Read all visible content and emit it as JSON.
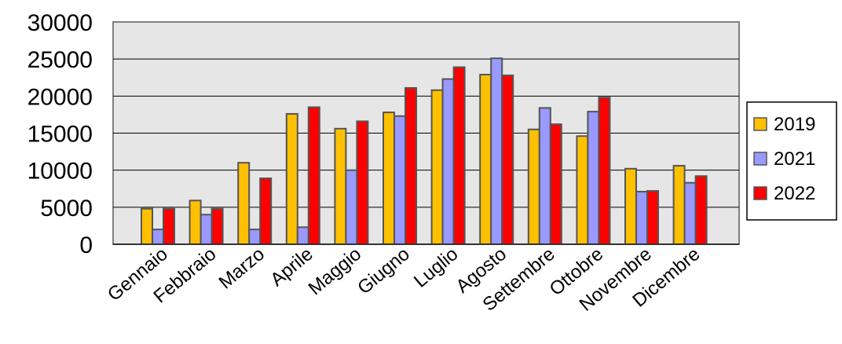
{
  "chart_data": {
    "type": "bar",
    "title": "",
    "xlabel": "",
    "ylabel": "",
    "ylim": [
      0,
      30000
    ],
    "yticks": [
      0,
      5000,
      10000,
      15000,
      20000,
      25000,
      30000
    ],
    "grid": true,
    "legend_position": "right",
    "categories": [
      "Gennaio",
      "Febbraio",
      "Marzo",
      "Aprile",
      "Maggio",
      "Giugno",
      "Luglio",
      "Agosto",
      "Settembre",
      "Ottobre",
      "Novembre",
      "Dicembre"
    ],
    "series": [
      {
        "name": "2019",
        "color": "#ffc000",
        "values": [
          4800,
          5900,
          11000,
          17600,
          15600,
          17800,
          20800,
          22900,
          15500,
          14600,
          10200,
          10600
        ]
      },
      {
        "name": "2021",
        "color": "#9999ff",
        "values": [
          2000,
          4000,
          2000,
          2300,
          10000,
          17300,
          22300,
          25100,
          18400,
          17900,
          7100,
          8300
        ]
      },
      {
        "name": "2022",
        "color": "#ff0000",
        "values": [
          4800,
          4800,
          8900,
          18500,
          16600,
          21100,
          23900,
          22800,
          16200,
          19800,
          7200,
          9200
        ]
      }
    ]
  }
}
